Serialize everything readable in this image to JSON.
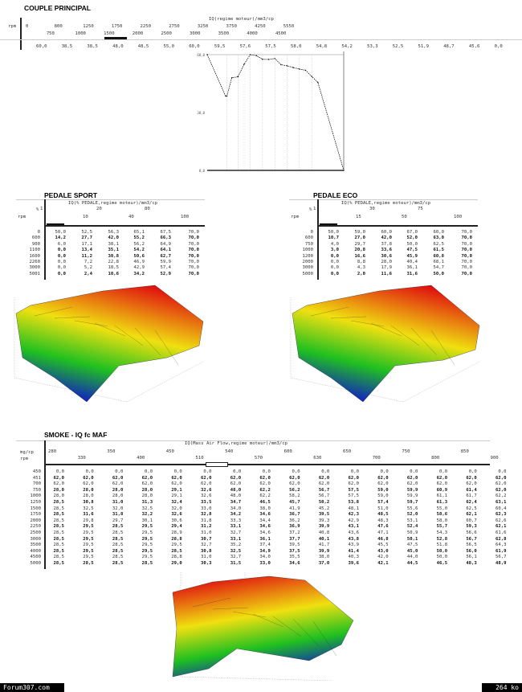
{
  "couple": {
    "title": "COUPLE PRINCIPAL",
    "axis_title": "IQ(regime moteur)/mm3/cp",
    "row_label": "rpm",
    "rpm": [
      "0",
      "750",
      "800",
      "1000",
      "1250",
      "1500",
      "1750",
      "2000",
      "2250",
      "2500",
      "2750",
      "3000",
      "3250",
      "3500",
      "3750",
      "4000",
      "4250",
      "4500",
      "5550"
    ],
    "values": [
      "60,0",
      "38,5",
      "38,5",
      "48,0",
      "48,5",
      "55,0",
      "60,0",
      "59,5",
      "57,6",
      "57,5",
      "58,0",
      "54,8",
      "54,2",
      "53,3",
      "52,5",
      "51,9",
      "48,7",
      "45,6",
      "0,0"
    ]
  },
  "chart_data": {
    "type": "line",
    "title": "",
    "xlabel": "rpm",
    "ylabel": "IQ mm3/cp",
    "x": [
      0,
      750,
      800,
      1000,
      1250,
      1500,
      1750,
      2000,
      2250,
      2500,
      2750,
      3000,
      3250,
      3500,
      3750,
      4000,
      4250,
      4500,
      5550
    ],
    "series": [
      {
        "name": "IQ",
        "values": [
          60,
          38.5,
          38.5,
          48,
          48.5,
          55,
          60,
          59.5,
          57.6,
          57.5,
          58,
          54.8,
          54.2,
          53.3,
          52.5,
          51.9,
          48.7,
          45.6,
          0
        ]
      }
    ],
    "xlim": [
      0,
      5550
    ],
    "ylim": [
      0,
      60
    ],
    "y_ticks": [
      "60,0",
      "30,0",
      "0,0"
    ]
  },
  "sport": {
    "title": "PEDALE SPORT",
    "axis_title": "IQ(% PEDALE,regime moteur)/mm3/cp",
    "corner_top": "%",
    "corner_bottom": "rpm",
    "cols": [
      "1",
      "10",
      "20",
      "40",
      "80",
      "100"
    ],
    "rows": [
      {
        "rpm": "0",
        "v": [
          "50,0",
          "52,5",
          "56,3",
          "65,1",
          "67,5",
          "70,0"
        ]
      },
      {
        "rpm": "600",
        "v": [
          "14,2",
          "27,7",
          "42,0",
          "55,2",
          "66,3",
          "70,0"
        ]
      },
      {
        "rpm": "900",
        "v": [
          "6,0",
          "17,1",
          "38,1",
          "56,2",
          "64,9",
          "70,0"
        ]
      },
      {
        "rpm": "1100",
        "v": [
          "0,0",
          "13,4",
          "35,1",
          "54,2",
          "64,1",
          "70,0"
        ]
      },
      {
        "rpm": "1600",
        "v": [
          "0,0",
          "11,2",
          "30,8",
          "50,6",
          "62,7",
          "70,0"
        ]
      },
      {
        "rpm": "2260",
        "v": [
          "0,0",
          "7,2",
          "22,8",
          "46,9",
          "59,9",
          "70,0"
        ]
      },
      {
        "rpm": "3000",
        "v": [
          "0,0",
          "5,2",
          "18,5",
          "42,9",
          "57,4",
          "70,0"
        ]
      },
      {
        "rpm": "5001",
        "v": [
          "0,0",
          "2,4",
          "10,6",
          "34,2",
          "52,9",
          "70,0"
        ]
      }
    ]
  },
  "eco": {
    "title": "PEDALE ECO",
    "axis_title": "IQ(% PEDALE,regime moteur)/mm3/cp",
    "corner_top": "%",
    "corner_bottom": "rpm",
    "cols": [
      "1",
      "15",
      "30",
      "50",
      "75",
      "100"
    ],
    "rows": [
      {
        "rpm": "0",
        "v": [
          "50,0",
          "59,0",
          "60,0",
          "67,0",
          "60,0",
          "70,0"
        ]
      },
      {
        "rpm": "600",
        "v": [
          "10,7",
          "27,0",
          "42,0",
          "52,0",
          "63,0",
          "70,0"
        ]
      },
      {
        "rpm": "750",
        "v": [
          "4,0",
          "29,7",
          "37,8",
          "50,0",
          "62,5",
          "70,0"
        ]
      },
      {
        "rpm": "1000",
        "v": [
          "3,0",
          "20,8",
          "33,6",
          "47,5",
          "61,5",
          "70,0"
        ]
      },
      {
        "rpm": "1200",
        "v": [
          "0,0",
          "16,6",
          "30,6",
          "45,9",
          "60,8",
          "70,0"
        ]
      },
      {
        "rpm": "2000",
        "v": [
          "0,0",
          "8,8",
          "28,0",
          "40,4",
          "68,1",
          "70,0"
        ]
      },
      {
        "rpm": "3000",
        "v": [
          "0,0",
          "4,3",
          "17,9",
          "36,1",
          "54,7",
          "70,0"
        ]
      },
      {
        "rpm": "5000",
        "v": [
          "0,0",
          "2,0",
          "11,6",
          "31,6",
          "50,0",
          "70,0"
        ]
      }
    ]
  },
  "smoke": {
    "title": "SMOKE - IQ fc MAF",
    "axis_title": "IQ(Mass Air Flow,regime moteur)/mm3/cp",
    "corner_top": "mg/cp",
    "corner_bottom": "rpm",
    "cols": [
      "280",
      "330",
      "350",
      "400",
      "450",
      "510",
      "540",
      "570",
      "600",
      "630",
      "650",
      "700",
      "750",
      "800",
      "850",
      "900"
    ],
    "rows": [
      {
        "rpm": "450",
        "v": [
          "0,0",
          "0,0",
          "0,0",
          "0,0",
          "0,0",
          "0,0",
          "0,0",
          "0,0",
          "0,0",
          "0,0",
          "0,0",
          "0,0",
          "0,0",
          "0,0",
          "0,0",
          "0,0"
        ]
      },
      {
        "rpm": "451",
        "v": [
          "62,0",
          "62,0",
          "62,0",
          "62,0",
          "62,0",
          "62,0",
          "62,0",
          "62,0",
          "62,0",
          "62,0",
          "62,0",
          "62,0",
          "62,0",
          "62,0",
          "62,0",
          "62,0"
        ]
      },
      {
        "rpm": "700",
        "v": [
          "62,0",
          "62,0",
          "62,0",
          "62,0",
          "62,0",
          "62,0",
          "62,0",
          "62,0",
          "62,0",
          "62,0",
          "62,0",
          "62,0",
          "62,0",
          "62,0",
          "62,0",
          "62,0"
        ]
      },
      {
        "rpm": "750",
        "v": [
          "28,0",
          "28,0",
          "28,0",
          "28,0",
          "29,1",
          "32,6",
          "48,0",
          "62,2",
          "56,2",
          "56,7",
          "57,5",
          "59,0",
          "59,9",
          "60,9",
          "61,4",
          "62,0"
        ]
      },
      {
        "rpm": "1000",
        "v": [
          "28,0",
          "28,0",
          "28,0",
          "28,0",
          "29,1",
          "32,6",
          "48,0",
          "62,2",
          "58,2",
          "56,7",
          "57,5",
          "59,0",
          "59,9",
          "61,1",
          "61,7",
          "62,2"
        ]
      },
      {
        "rpm": "1250",
        "v": [
          "28,5",
          "30,8",
          "31,0",
          "31,3",
          "32,4",
          "33,5",
          "34,7",
          "46,5",
          "45,7",
          "50,2",
          "53,8",
          "57,4",
          "59,7",
          "61,3",
          "62,4",
          "63,1"
        ]
      },
      {
        "rpm": "1500",
        "v": [
          "28,5",
          "32,5",
          "32,0",
          "32,5",
          "32,0",
          "33,0",
          "34,0",
          "38,0",
          "41,9",
          "45,2",
          "48,1",
          "51,0",
          "55,6",
          "55,0",
          "62,5",
          "60,4"
        ]
      },
      {
        "rpm": "1750",
        "v": [
          "28,5",
          "31,6",
          "31,8",
          "32,2",
          "32,6",
          "32,8",
          "34,2",
          "34,6",
          "36,7",
          "39,5",
          "42,3",
          "48,5",
          "52,0",
          "58,6",
          "62,1",
          "62,3"
        ]
      },
      {
        "rpm": "2000",
        "v": [
          "28,5",
          "29,8",
          "29,7",
          "30,1",
          "30,6",
          "31,8",
          "33,3",
          "34,4",
          "36,2",
          "39,3",
          "42,9",
          "48,3",
          "53,1",
          "58,0",
          "60,7",
          "62,6"
        ]
      },
      {
        "rpm": "2250",
        "v": [
          "28,5",
          "29,5",
          "28,5",
          "29,5",
          "29,4",
          "31,2",
          "33,1",
          "34,6",
          "36,9",
          "39,9",
          "43,1",
          "47,6",
          "52,4",
          "55,7",
          "59,3",
          "62,1"
        ]
      },
      {
        "rpm": "2500",
        "v": [
          "28,5",
          "29,5",
          "28,5",
          "29,5",
          "28,9",
          "31,0",
          "32,7",
          "34,6",
          "37,2",
          "40,8",
          "43,6",
          "47,1",
          "50,9",
          "54,3",
          "56,6",
          "61,6"
        ]
      },
      {
        "rpm": "3000",
        "v": [
          "28,5",
          "29,5",
          "28,5",
          "29,5",
          "28,8",
          "30,7",
          "33,1",
          "36,1",
          "37,7",
          "40,1",
          "43,8",
          "46,8",
          "50,1",
          "52,8",
          "56,7",
          "62,8"
        ]
      },
      {
        "rpm": "3500",
        "v": [
          "28,5",
          "29,5",
          "28,5",
          "29,5",
          "29,5",
          "32,7",
          "35,2",
          "37,4",
          "39,5",
          "41,7",
          "43,9",
          "45,5",
          "47,5",
          "51,8",
          "56,5",
          "64,3"
        ]
      },
      {
        "rpm": "4000",
        "v": [
          "28,5",
          "29,5",
          "28,5",
          "29,5",
          "28,5",
          "30,8",
          "32,5",
          "34,9",
          "37,5",
          "39,9",
          "41,4",
          "43,0",
          "45,0",
          "50,0",
          "56,0",
          "61,9"
        ]
      },
      {
        "rpm": "4500",
        "v": [
          "28,5",
          "29,5",
          "28,5",
          "29,5",
          "28,8",
          "31,0",
          "32,7",
          "34,0",
          "35,5",
          "38,0",
          "40,3",
          "42,0",
          "44,0",
          "50,0",
          "56,1",
          "56,7"
        ]
      },
      {
        "rpm": "5000",
        "v": [
          "28,5",
          "28,5",
          "28,5",
          "28,5",
          "29,0",
          "30,3",
          "31,5",
          "33,0",
          "34,6",
          "37,0",
          "39,6",
          "42,1",
          "44,5",
          "46,5",
          "48,3",
          "48,9"
        ]
      }
    ]
  },
  "footer": {
    "site": "Forum307.com",
    "size": "264 ko"
  },
  "colors": {
    "surface_top": "#e01010",
    "surface_mid": "#f0e010",
    "surface_low": "#20c020",
    "surface_bottom": "#1010d0"
  }
}
